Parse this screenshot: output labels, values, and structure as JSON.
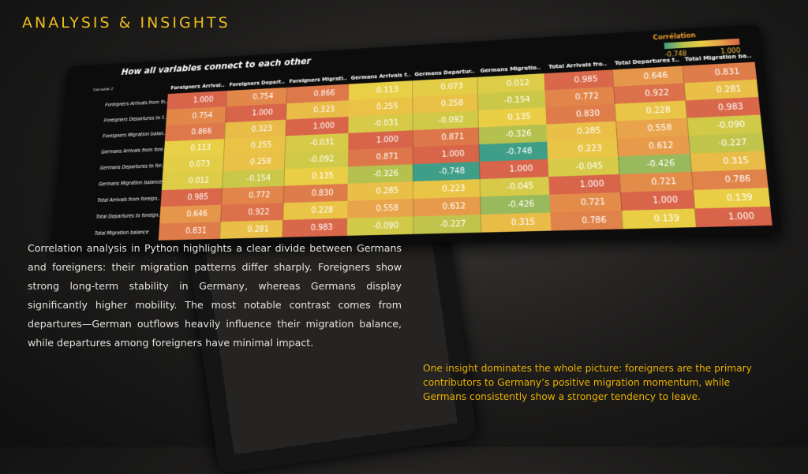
{
  "heading": "ANALYSIS & INSIGHTS",
  "body": "Correlation analysis in Python highlights a clear divide between Germans and foreigners: their migration patterns differ sharply. Foreigners show strong long-term stability in Germany, whereas Germans display significantly higher mobility. The most notable contrast comes from departures—German outflows heavily influence their migration balance, while departures among foreigners have minimal impact.",
  "insight": "One insight dominates the whole picture: foreigners are the primary contributors to Germany’s positive migration momentum, while Germans consistently show a stronger tendency to leave.",
  "chart_data": {
    "type": "heatmap",
    "title": "How all variables connect to each other",
    "y_label": "Variable 2",
    "legend_title": "Corrélation",
    "color_range": [
      -0.748,
      {
        "value": 1,
        "label": "1.000"
      }
    ],
    "colors": [
      "#3f9e87",
      "#b8c24c",
      "#e9cf45",
      "#e9a24a",
      "#d8654a"
    ],
    "x_categories": [
      "Foreigners Arrival..",
      "Foreigners Depart..",
      "Foreigners Migrati..",
      "Germans Arrivals f..",
      "Germans Departur..",
      "Germans Migratio..",
      "Total Arrivals fro..",
      "Total Departures t..",
      "Total Migration ba.."
    ],
    "y_categories": [
      "Foreigners Arrivals from fo..",
      "Foreigners Departures to f..",
      "Foreigners Migration balan..",
      "Germans Arrivals from fore..",
      "Germans Departures to for..",
      "Germans Migration balance",
      "Total Arrivals from foreign..",
      "Total Departures to foreign..",
      "Total Migration balance"
    ],
    "values": [
      [
        1,
        0.754,
        0.866,
        0.113,
        0.073,
        0.012,
        0.985,
        0.646,
        0.831
      ],
      [
        0.754,
        1,
        0.323,
        0.255,
        0.258,
        -0.154,
        0.772,
        0.922,
        0.281
      ],
      [
        0.866,
        0.323,
        1,
        -0.031,
        -0.092,
        0.135,
        0.83,
        0.228,
        0.983
      ],
      [
        0.113,
        0.255,
        -0.031,
        1,
        0.871,
        -0.326,
        0.285,
        0.558,
        -0.09
      ],
      [
        0.073,
        0.258,
        -0.092,
        0.871,
        1,
        -0.748,
        0.223,
        0.612,
        -0.227
      ],
      [
        0.012,
        -0.154,
        0.135,
        -0.326,
        -0.748,
        1,
        -0.045,
        -0.426,
        0.315
      ],
      [
        0.985,
        0.772,
        0.83,
        0.285,
        0.223,
        -0.045,
        1,
        0.721,
        0.786
      ],
      [
        0.646,
        0.922,
        0.228,
        0.558,
        0.612,
        -0.426,
        0.721,
        1,
        0.139
      ],
      [
        0.831,
        0.281,
        0.983,
        -0.09,
        -0.227,
        0.315,
        0.786,
        0.139,
        1
      ]
    ],
    "value_labels": [
      [
        "1.000",
        "0.754",
        "0.866",
        "0.113",
        "0.073",
        "0.012",
        "0.985",
        "0.646",
        "0.831"
      ],
      [
        "0.754",
        "1.000",
        "0.323",
        "0.255",
        "0.258",
        "-0.154",
        "0.772",
        "0.922",
        "0.281"
      ],
      [
        "0.866",
        "0.323",
        "1.000",
        "-0.031",
        "-0.092",
        "0.135",
        "0.830",
        "0.228",
        "0.983"
      ],
      [
        "0.113",
        "0.255",
        "-0.031",
        "1.000",
        "0.871",
        "-0.326",
        "0.285",
        "0.558",
        "-0.090"
      ],
      [
        "0.073",
        "0.258",
        "-0.092",
        "0.871",
        "1.000",
        "-0.748",
        "0.223",
        "0.612",
        "-0.227"
      ],
      [
        "0.012",
        "-0.154",
        "0.135",
        "-0.326",
        "-0.748",
        "1.000",
        "-0.045",
        "-0.426",
        "0.315"
      ],
      [
        "0.985",
        "0.772",
        "0.830",
        "0.285",
        "0.223",
        "-0.045",
        "1.000",
        "0.721",
        "0.786"
      ],
      [
        "0.646",
        "0.922",
        "0.228",
        "0.558",
        "0.612",
        "-0.426",
        "0.721",
        "1.000",
        "0.139"
      ],
      [
        "0.831",
        "0.281",
        "0.983",
        "-0.090",
        "-0.227",
        "0.315",
        "0.786",
        "0.139",
        "1.000"
      ]
    ]
  }
}
